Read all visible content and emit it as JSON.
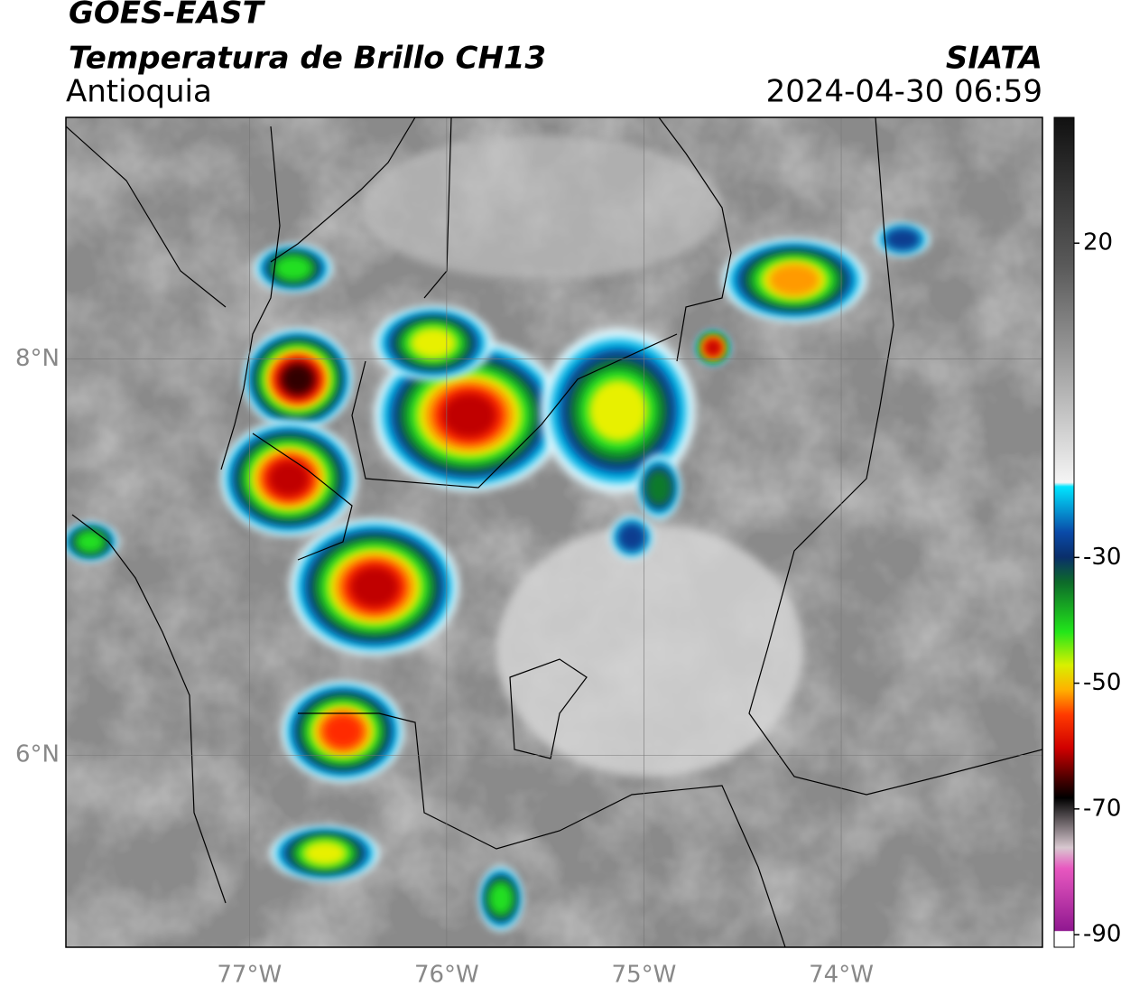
{
  "header": {
    "satellite": "GOES-EAST",
    "product": "Temperatura de Brillo CH13",
    "region": "Antioquia",
    "source": "SIATA",
    "datetime": "2024-04-30 06:59"
  },
  "map": {
    "xlim": [
      -77.93,
      -72.98
    ],
    "ylim": [
      5.03,
      9.22
    ],
    "xticks": [
      {
        "value": -77,
        "label": "77°W"
      },
      {
        "value": -76,
        "label": "76°W"
      },
      {
        "value": -75,
        "label": "75°W"
      },
      {
        "value": -74,
        "label": "74°W"
      }
    ],
    "yticks": [
      {
        "value": 6,
        "label": "6°N"
      },
      {
        "value": 8,
        "label": "8°N"
      }
    ],
    "grid": true
  },
  "colorbar": {
    "lim": [
      -92,
      40
    ],
    "ticks": [
      20,
      -30,
      -50,
      -70,
      -90
    ]
  }
}
